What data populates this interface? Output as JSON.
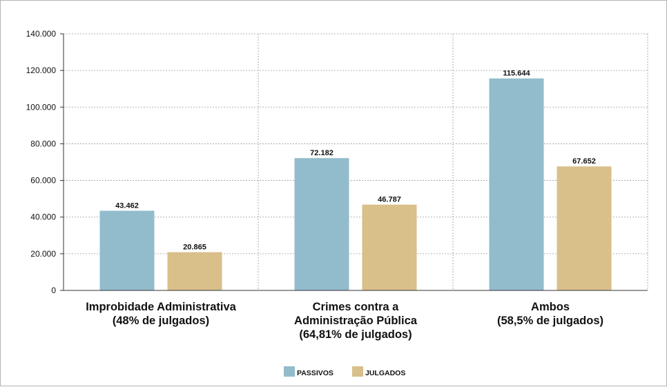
{
  "chart_data": {
    "type": "bar",
    "categories": [
      [
        "Improbidade Administrativa",
        "(48% de julgados)"
      ],
      [
        "Crimes contra a",
        "Administração Pública",
        "(64,81% de julgados)"
      ],
      [
        "Ambos",
        "(58,5% de julgados)"
      ]
    ],
    "series": [
      {
        "name": "PASSIVOS",
        "color": "#92bccc",
        "values": [
          43462,
          72182,
          115644
        ],
        "labels": [
          "43.462",
          "72.182",
          "115.644"
        ]
      },
      {
        "name": "JULGADOS",
        "color": "#d9bf8a",
        "values": [
          20865,
          46787,
          67652
        ],
        "labels": [
          "20.865",
          "46.787",
          "67.652"
        ]
      }
    ],
    "ylim": [
      0,
      140000
    ],
    "yticks": [
      0,
      20000,
      40000,
      60000,
      80000,
      100000,
      120000,
      140000
    ],
    "ytick_labels": [
      "0",
      "20.000",
      "40.000",
      "60.000",
      "80.000",
      "100.000",
      "120.000",
      "140.000"
    ],
    "grid": true,
    "legend": "bottom-center",
    "title": "",
    "xlabel": "",
    "ylabel": ""
  }
}
